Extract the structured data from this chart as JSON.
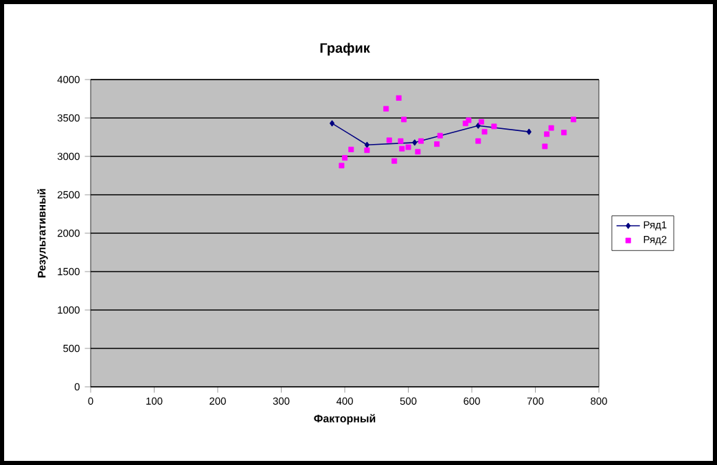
{
  "chart_data": {
    "type": "scatter",
    "title": "График",
    "xlabel": "Факторный",
    "ylabel": "Результативный",
    "xlim": [
      0,
      800
    ],
    "xticks": [
      0,
      100,
      200,
      300,
      400,
      500,
      600,
      700,
      800
    ],
    "ylim": [
      0,
      4000
    ],
    "yticks": [
      0,
      500,
      1000,
      1500,
      2000,
      2500,
      3000,
      3500,
      4000
    ],
    "grid": "y",
    "legend": "right",
    "series": [
      {
        "name": "Ряд1",
        "type": "line",
        "color": "#000080",
        "marker": "diamond",
        "x": [
          380,
          435,
          510,
          610,
          690
        ],
        "values": [
          3430,
          3150,
          3180,
          3400,
          3320
        ]
      },
      {
        "name": "Ряд2",
        "color": "#ff00ff",
        "marker": "square",
        "x": [
          395,
          400,
          410,
          435,
          465,
          470,
          478,
          485,
          488,
          490,
          493,
          500,
          515,
          520,
          545,
          550,
          590,
          595,
          610,
          615,
          620,
          635,
          715,
          718,
          725,
          745,
          760
        ],
        "values": [
          2880,
          2980,
          3090,
          3080,
          3620,
          3210,
          2940,
          3760,
          3200,
          3100,
          3480,
          3120,
          3060,
          3200,
          3160,
          3270,
          3430,
          3470,
          3200,
          3450,
          3320,
          3390,
          3130,
          3290,
          3370,
          3310,
          3480
        ]
      }
    ]
  }
}
